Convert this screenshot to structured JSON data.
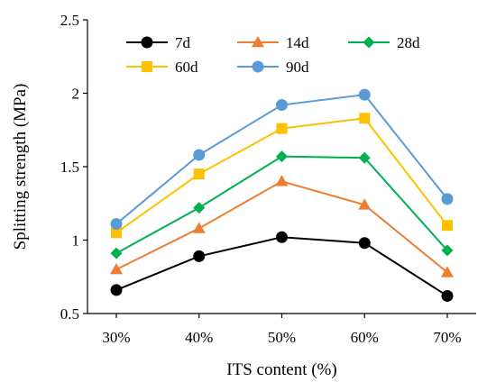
{
  "chart_data": {
    "type": "line",
    "x": [
      "30%",
      "40%",
      "50%",
      "60%",
      "70%"
    ],
    "xlabel": "ITS content (%)",
    "ylabel": "Splitting strength (MPa)",
    "ylim": [
      0.5,
      2.5
    ],
    "yticks": [
      "0.5",
      "1",
      "1.5",
      "2",
      "2.5"
    ],
    "grid": false,
    "legend_position": "top",
    "series": [
      {
        "name": "7d",
        "color": "#000000",
        "marker": "circle",
        "values": [
          0.66,
          0.89,
          1.02,
          0.98,
          0.62
        ]
      },
      {
        "name": "14d",
        "color": "#ED7D31",
        "marker": "triangle",
        "values": [
          0.8,
          1.08,
          1.4,
          1.24,
          0.78
        ]
      },
      {
        "name": "28d",
        "color": "#00B050",
        "marker": "diamond",
        "values": [
          0.91,
          1.22,
          1.57,
          1.56,
          0.93
        ]
      },
      {
        "name": "60d",
        "color": "#FFC000",
        "marker": "square",
        "values": [
          1.05,
          1.45,
          1.76,
          1.83,
          1.1
        ]
      },
      {
        "name": "90d",
        "color": "#5B9BD5",
        "marker": "circle",
        "values": [
          1.11,
          1.58,
          1.92,
          1.99,
          1.28
        ]
      }
    ]
  }
}
